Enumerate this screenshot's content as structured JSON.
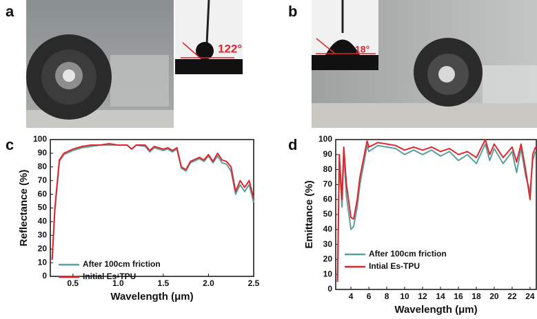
{
  "panel_labels": [
    "a",
    "b",
    "c",
    "d"
  ],
  "photos": [
    {
      "angle_label": "122°"
    },
    {
      "angle_label": "18°"
    }
  ],
  "chart_data": [
    {
      "type": "line",
      "xlabel": "Wavelength (μm)",
      "ylabel": "Reflectance (%)",
      "xlim": [
        0.25,
        2.5
      ],
      "ylim": [
        0,
        100
      ],
      "xticks": [
        0.5,
        {
          "value": 1,
          "label": "1.0"
        },
        1.5,
        {
          "value": 2,
          "label": "2.0"
        },
        2.5
      ],
      "yticks": [
        0,
        10,
        20,
        30,
        40,
        50,
        60,
        70,
        80,
        90,
        100
      ],
      "x": [
        0.27,
        0.3,
        0.35,
        0.4,
        0.5,
        0.6,
        0.7,
        0.8,
        0.9,
        1.0,
        1.1,
        1.15,
        1.2,
        1.3,
        1.35,
        1.4,
        1.5,
        1.55,
        1.6,
        1.65,
        1.7,
        1.75,
        1.8,
        1.9,
        1.95,
        2.0,
        2.05,
        2.1,
        2.15,
        2.2,
        2.25,
        2.3,
        2.35,
        2.4,
        2.45,
        2.5
      ],
      "series": [
        {
          "name": "After 100cm friction",
          "color": "#5b9ea0",
          "values": [
            12,
            48,
            84,
            89,
            92,
            94,
            95,
            96,
            96,
            96,
            96,
            93,
            96,
            95,
            91,
            94,
            92,
            93,
            91,
            93,
            79,
            77,
            83,
            86,
            84,
            88,
            83,
            88,
            83,
            82,
            77,
            60,
            67,
            62,
            67,
            54
          ]
        },
        {
          "name": "Initial Es-TPU",
          "color": "#e0262b",
          "values": [
            12,
            50,
            85,
            90,
            93,
            95,
            96,
            96,
            97,
            96,
            96,
            93,
            96,
            96,
            92,
            95,
            93,
            94,
            92,
            94,
            80,
            78,
            84,
            87,
            85,
            89,
            84,
            90,
            85,
            84,
            80,
            62,
            70,
            65,
            70,
            57
          ]
        }
      ]
    },
    {
      "type": "line",
      "xlabel": "Wavelength (μm)",
      "ylabel": "Emittance (%)",
      "xlim": [
        2.3,
        24.7
      ],
      "ylim": [
        0,
        100
      ],
      "xticks": [
        4,
        6,
        8,
        10,
        12,
        14,
        16,
        18,
        20,
        22,
        24
      ],
      "yticks": [
        0,
        10,
        20,
        30,
        40,
        50,
        60,
        70,
        80,
        90,
        100
      ],
      "x": [
        2.5,
        2.7,
        3.0,
        3.2,
        3.5,
        4.0,
        4.3,
        4.7,
        5.0,
        5.5,
        5.8,
        6.0,
        7.0,
        8.0,
        9.0,
        10.0,
        11.0,
        12.0,
        13.0,
        14.0,
        15.0,
        16.0,
        17.0,
        18.0,
        19.0,
        19.5,
        20.0,
        21.0,
        22.0,
        22.5,
        23.0,
        23.5,
        24.0,
        24.3,
        24.6
      ],
      "series": [
        {
          "name": "After 100cm friction",
          "color": "#5b9ea0",
          "values": [
            5,
            85,
            55,
            90,
            62,
            40,
            42,
            55,
            70,
            86,
            96,
            92,
            96,
            95,
            94,
            90,
            93,
            90,
            93,
            89,
            92,
            86,
            90,
            84,
            97,
            86,
            94,
            84,
            92,
            78,
            94,
            76,
            65,
            86,
            92
          ]
        },
        {
          "name": "Intial Es-TPU",
          "color": "#e0262b",
          "values": [
            5,
            90,
            60,
            95,
            70,
            48,
            47,
            60,
            75,
            90,
            99,
            95,
            98,
            97,
            96,
            93,
            95,
            93,
            95,
            92,
            94,
            90,
            92,
            88,
            100,
            90,
            97,
            88,
            95,
            85,
            97,
            80,
            60,
            90,
            95
          ]
        }
      ]
    }
  ]
}
